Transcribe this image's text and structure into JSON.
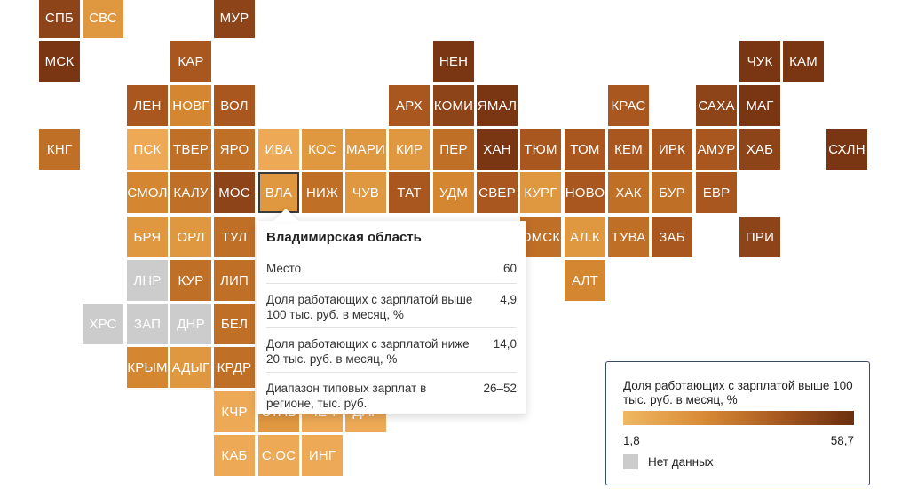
{
  "colors": {
    "c1": "#eda955",
    "c2": "#e09840",
    "c3": "#d48630",
    "c4": "#c06f27",
    "c5": "#a9561f",
    "c6": "#8e4419",
    "c7": "#7a3612",
    "na": "#cccccc"
  },
  "regions": [
    {
      "label": "СПБ",
      "col": 0,
      "row": 0,
      "c": "c6"
    },
    {
      "label": "СВС",
      "col": 1,
      "row": 0,
      "c": "c2"
    },
    {
      "label": "МУР",
      "col": 4,
      "row": 0,
      "c": "c6"
    },
    {
      "label": "МСК",
      "col": 0,
      "row": 1,
      "c": "c7"
    },
    {
      "label": "КАР",
      "col": 3,
      "row": 1,
      "c": "c5"
    },
    {
      "label": "НЕН",
      "col": 9,
      "row": 1,
      "c": "c7"
    },
    {
      "label": "ЧУК",
      "col": 16,
      "row": 1,
      "c": "c7"
    },
    {
      "label": "КАМ",
      "col": 17,
      "row": 1,
      "c": "c7"
    },
    {
      "label": "ЛЕН",
      "col": 2,
      "row": 2,
      "c": "c5"
    },
    {
      "label": "НОВГ",
      "col": 3,
      "row": 2,
      "c": "c3"
    },
    {
      "label": "ВОЛ",
      "col": 4,
      "row": 2,
      "c": "c5"
    },
    {
      "label": "АРХ",
      "col": 8,
      "row": 2,
      "c": "c5"
    },
    {
      "label": "КОМИ",
      "col": 9,
      "row": 2,
      "c": "c6"
    },
    {
      "label": "ЯМАЛ",
      "col": 10,
      "row": 2,
      "c": "c7"
    },
    {
      "label": "КРАС",
      "col": 13,
      "row": 2,
      "c": "c5"
    },
    {
      "label": "САХА",
      "col": 15,
      "row": 2,
      "c": "c6"
    },
    {
      "label": "МАГ",
      "col": 16,
      "row": 2,
      "c": "c7"
    },
    {
      "label": "КНГ",
      "col": 0,
      "row": 3,
      "c": "c4"
    },
    {
      "label": "ПСК",
      "col": 2,
      "row": 3,
      "c": "c1"
    },
    {
      "label": "ТВЕР",
      "col": 3,
      "row": 3,
      "c": "c4"
    },
    {
      "label": "ЯРО",
      "col": 4,
      "row": 3,
      "c": "c4"
    },
    {
      "label": "ИВА",
      "col": 5,
      "row": 3,
      "c": "c1"
    },
    {
      "label": "КОС",
      "col": 6,
      "row": 3,
      "c": "c2"
    },
    {
      "label": "МАРИ",
      "col": 7,
      "row": 3,
      "c": "c2"
    },
    {
      "label": "КИР",
      "col": 8,
      "row": 3,
      "c": "c2"
    },
    {
      "label": "ПЕР",
      "col": 9,
      "row": 3,
      "c": "c4"
    },
    {
      "label": "ХАН",
      "col": 10,
      "row": 3,
      "c": "c7"
    },
    {
      "label": "ТЮМ",
      "col": 11,
      "row": 3,
      "c": "c5"
    },
    {
      "label": "ТОМ",
      "col": 12,
      "row": 3,
      "c": "c5"
    },
    {
      "label": "КЕМ",
      "col": 13,
      "row": 3,
      "c": "c5"
    },
    {
      "label": "ИРК",
      "col": 14,
      "row": 3,
      "c": "c5"
    },
    {
      "label": "АМУР",
      "col": 15,
      "row": 3,
      "c": "c5"
    },
    {
      "label": "ХАБ",
      "col": 16,
      "row": 3,
      "c": "c6"
    },
    {
      "label": "СХЛН",
      "col": 18,
      "row": 3,
      "c": "c7"
    },
    {
      "label": "СМОЛ",
      "col": 2,
      "row": 4,
      "c": "c3"
    },
    {
      "label": "КАЛУ",
      "col": 3,
      "row": 4,
      "c": "c4"
    },
    {
      "label": "МОС",
      "col": 4,
      "row": 4,
      "c": "c6"
    },
    {
      "label": "ВЛА",
      "col": 5,
      "row": 4,
      "c": "c2",
      "selected": true
    },
    {
      "label": "НИЖ",
      "col": 6,
      "row": 4,
      "c": "c4"
    },
    {
      "label": "ЧУВ",
      "col": 7,
      "row": 4,
      "c": "c2"
    },
    {
      "label": "ТАТ",
      "col": 8,
      "row": 4,
      "c": "c5"
    },
    {
      "label": "УДМ",
      "col": 9,
      "row": 4,
      "c": "c3"
    },
    {
      "label": "СВЕР",
      "col": 10,
      "row": 4,
      "c": "c5"
    },
    {
      "label": "КУРГ",
      "col": 11,
      "row": 4,
      "c": "c2"
    },
    {
      "label": "НОВО",
      "col": 12,
      "row": 4,
      "c": "c5"
    },
    {
      "label": "ХАК",
      "col": 13,
      "row": 4,
      "c": "c4"
    },
    {
      "label": "БУР",
      "col": 14,
      "row": 4,
      "c": "c4"
    },
    {
      "label": "ЕВР",
      "col": 15,
      "row": 4,
      "c": "c5"
    },
    {
      "label": "БРЯ",
      "col": 2,
      "row": 5,
      "c": "c2"
    },
    {
      "label": "ОРЛ",
      "col": 3,
      "row": 5,
      "c": "c2"
    },
    {
      "label": "ТУЛ",
      "col": 4,
      "row": 5,
      "c": "c4"
    },
    {
      "label": "ОМСК",
      "col": 11,
      "row": 5,
      "c": "c4"
    },
    {
      "label": "АЛ.К",
      "col": 12,
      "row": 5,
      "c": "c2"
    },
    {
      "label": "ТУВА",
      "col": 13,
      "row": 5,
      "c": "c4"
    },
    {
      "label": "ЗАБ",
      "col": 14,
      "row": 5,
      "c": "c5"
    },
    {
      "label": "ПРИ",
      "col": 16,
      "row": 5,
      "c": "c6"
    },
    {
      "label": "ЛНР",
      "col": 2,
      "row": 6,
      "c": "na"
    },
    {
      "label": "КУР",
      "col": 3,
      "row": 6,
      "c": "c4"
    },
    {
      "label": "ЛИП",
      "col": 4,
      "row": 6,
      "c": "c4"
    },
    {
      "label": "АЛТ",
      "col": 12,
      "row": 6,
      "c": "c3"
    },
    {
      "label": "ХРС",
      "col": 1,
      "row": 7,
      "c": "na"
    },
    {
      "label": "ЗАП",
      "col": 2,
      "row": 7,
      "c": "na"
    },
    {
      "label": "ДНР",
      "col": 3,
      "row": 7,
      "c": "na"
    },
    {
      "label": "БЕЛ",
      "col": 4,
      "row": 7,
      "c": "c4"
    },
    {
      "label": "КРЫМ",
      "col": 2,
      "row": 8,
      "c": "c3"
    },
    {
      "label": "АДЫГ",
      "col": 3,
      "row": 8,
      "c": "c2"
    },
    {
      "label": "КРДР",
      "col": 4,
      "row": 8,
      "c": "c4"
    },
    {
      "label": "КЧР",
      "col": 4,
      "row": 9,
      "c": "c1"
    },
    {
      "label": "СТАВ",
      "col": 5,
      "row": 9,
      "c": "c2"
    },
    {
      "label": "ЧЕЧ",
      "col": 6,
      "row": 9,
      "c": "c1"
    },
    {
      "label": "ДАГ",
      "col": 7,
      "row": 9,
      "c": "c1"
    },
    {
      "label": "КАБ",
      "col": 4,
      "row": 10,
      "c": "c1"
    },
    {
      "label": "С.ОС",
      "col": 5,
      "row": 10,
      "c": "c1"
    },
    {
      "label": "ИНГ",
      "col": 6,
      "row": 10,
      "c": "c1"
    }
  ],
  "tooltip": {
    "title": "Владимирская область",
    "rows": [
      {
        "label": "Место",
        "value": "60"
      },
      {
        "label": "Доля работающих с зарплатой выше 100 тыс. руб. в месяц, %",
        "value": "4,9"
      },
      {
        "label": "Доля работающих с зарплатой ниже 20 тыс. руб. в месяц, %",
        "value": "14,0"
      },
      {
        "label": "Диапазон типовых зарплат в регионе, тыс. руб.",
        "value": "26–52"
      }
    ]
  },
  "legend": {
    "title": "Доля работающих с зарплатой выше 100 тыс. руб. в месяц, %",
    "min": "1,8",
    "max": "58,7",
    "no_data_label": "Нет данных"
  }
}
